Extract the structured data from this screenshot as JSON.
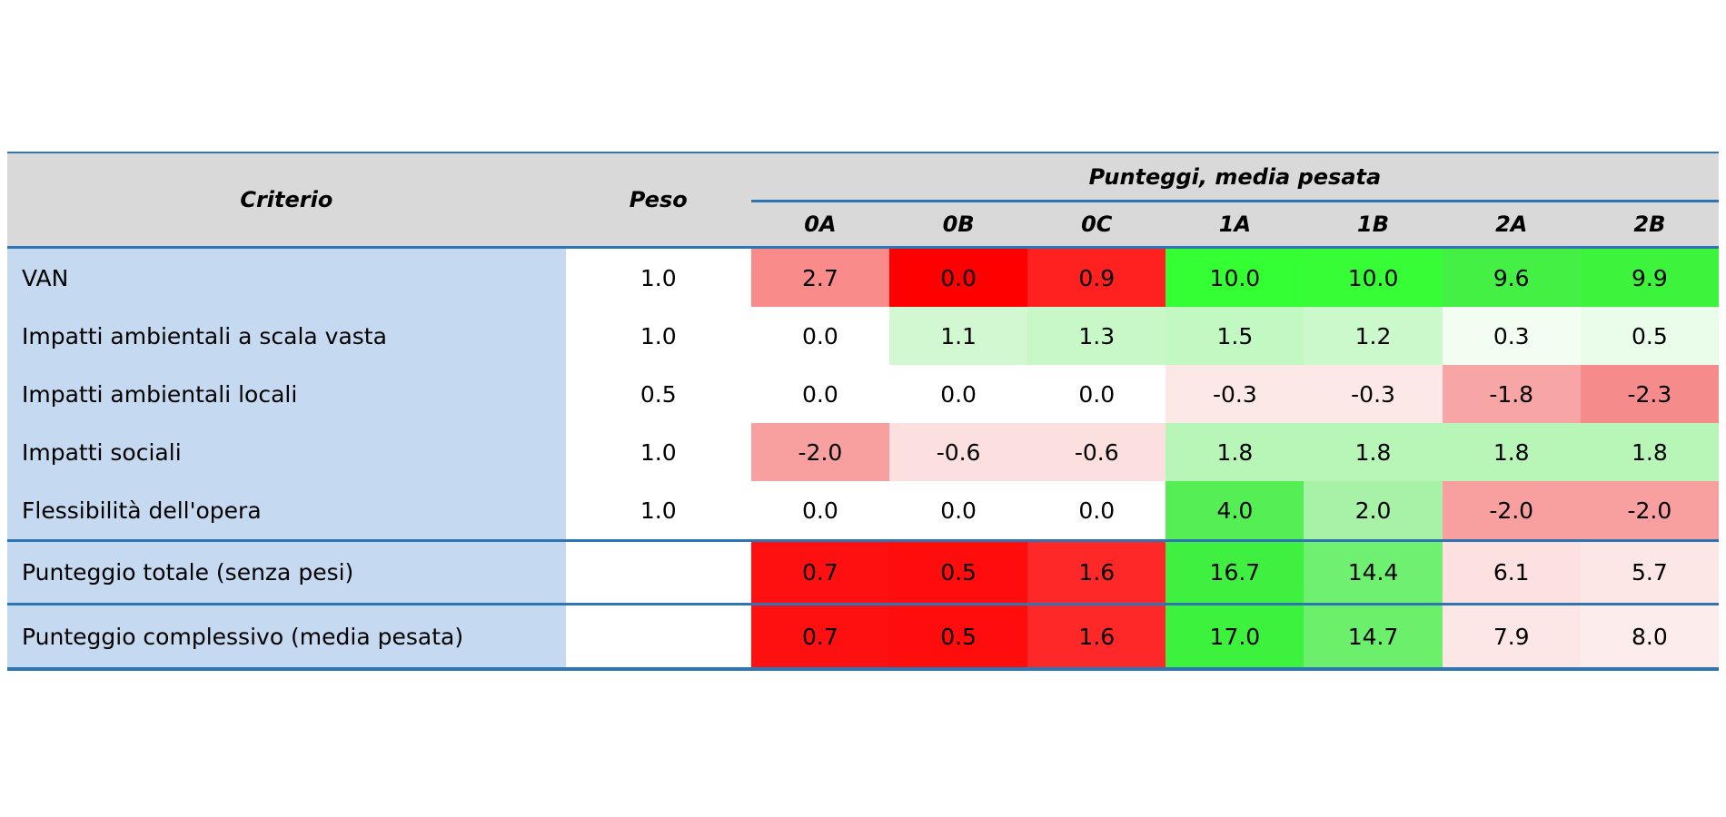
{
  "table": {
    "header": {
      "criterio": "Criterio",
      "peso": "Peso",
      "group": "Punteggi, media pesata",
      "columns": [
        "0A",
        "0B",
        "0C",
        "1A",
        "1B",
        "2A",
        "2B"
      ]
    },
    "rows": [
      {
        "label": "VAN",
        "peso": "1.0",
        "values": [
          "2.7",
          "0.0",
          "0.9",
          "10.0",
          "10.0",
          "9.6",
          "9.9"
        ],
        "colors": [
          "#f98b8b",
          "#ff0000",
          "#ff2020",
          "#33ff33",
          "#36fd36",
          "#45f045",
          "#3df43d"
        ]
      },
      {
        "label": "Impatti ambientali a scala vasta",
        "peso": "1.0",
        "values": [
          "0.0",
          "1.1",
          "1.3",
          "1.5",
          "1.2",
          "0.3",
          "0.5"
        ],
        "colors": [
          "#ffffff",
          "#d2f8d2",
          "#c8f8c8",
          "#c2f8c2",
          "#ccf9cc",
          "#f2fef2",
          "#eafcea"
        ]
      },
      {
        "label": "Impatti ambientali locali",
        "peso": "0.5",
        "values": [
          "0.0",
          "0.0",
          "0.0",
          "-0.3",
          "-0.3",
          "-1.8",
          "-2.3"
        ],
        "colors": [
          "#ffffff",
          "#ffffff",
          "#ffffff",
          "#fde8e8",
          "#fde8e8",
          "#f7a5a5",
          "#f58b8b"
        ]
      },
      {
        "label": "Impatti sociali",
        "peso": "1.0",
        "values": [
          "-2.0",
          "-0.6",
          "-0.6",
          "1.8",
          "1.8",
          "1.8",
          "1.8"
        ],
        "colors": [
          "#f8a0a0",
          "#fce0e0",
          "#fce0e0",
          "#b8f6b8",
          "#b8f6b8",
          "#b8f6b8",
          "#b8f6b8"
        ]
      },
      {
        "label": "Flessibilità dell'opera",
        "peso": "1.0",
        "values": [
          "0.0",
          "0.0",
          "0.0",
          "4.0",
          "2.0",
          "-2.0",
          "-2.0"
        ],
        "colors": [
          "#ffffff",
          "#ffffff",
          "#ffffff",
          "#55ee55",
          "#a8f2a8",
          "#f8a0a0",
          "#f8a0a0"
        ]
      },
      {
        "label": "Punteggio totale (senza pesi)",
        "peso": "",
        "values": [
          "0.7",
          "0.5",
          "1.6",
          "16.7",
          "14.4",
          "6.1",
          "5.7"
        ],
        "colors": [
          "#ff1010",
          "#ff0c0c",
          "#ff2828",
          "#40f040",
          "#70f070",
          "#fde0e0",
          "#fde6e6"
        ]
      },
      {
        "label": "Punteggio complessivo (media pesata)",
        "peso": "",
        "values": [
          "0.7",
          "0.5",
          "1.6",
          "17.0",
          "14.7",
          "7.9",
          "8.0"
        ],
        "colors": [
          "#ff1010",
          "#ff0c0c",
          "#ff2828",
          "#3df23d",
          "#6cf06c",
          "#fde6e6",
          "#fdecec"
        ]
      }
    ]
  }
}
